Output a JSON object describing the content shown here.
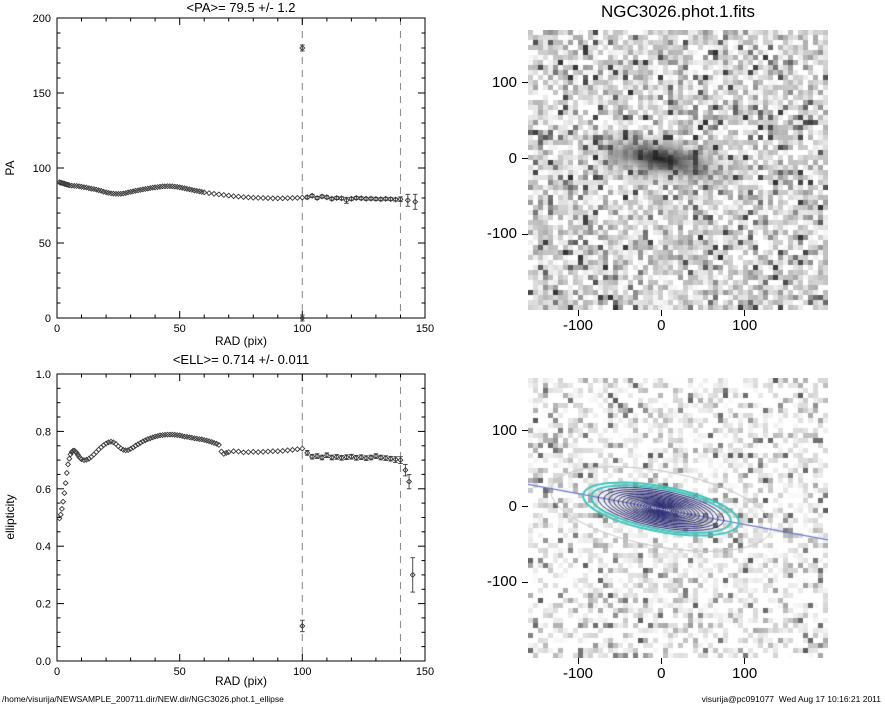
{
  "footer": {
    "left_path": "/home/visurija/NEWSAMPLE_200711.dir/NEW.dir/NGC3026.phot.1_ellipse",
    "right_stamp": "visurija@pc091077  Wed Aug 17 10:16:21 2011"
  },
  "chart_data": [
    {
      "type": "scatter",
      "title": "<PA>= 79.5 +/-  1.2",
      "xlabel": "RAD (pix)",
      "ylabel": "PA",
      "mean_pa": 79.5,
      "mean_pa_err": 1.2,
      "xlim": [
        0,
        150
      ],
      "ylim": [
        0,
        200
      ],
      "xticks": [
        "0",
        "50",
        "100",
        "150"
      ],
      "yticks": [
        "0",
        "50",
        "100",
        "150",
        "200"
      ],
      "dashed_vlines": [
        100,
        140
      ],
      "marker_color": "#3a3a3a",
      "dashed_line_color": "#8f8f8f",
      "points": [
        [
          1,
          90.5
        ],
        [
          1.5,
          90.2
        ],
        [
          2,
          90
        ],
        [
          2.5,
          89.7
        ],
        [
          3,
          89.5
        ],
        [
          3.5,
          89.2
        ],
        [
          4,
          89
        ],
        [
          4.5,
          88.8
        ],
        [
          5,
          88.5
        ],
        [
          6,
          88.3
        ],
        [
          7,
          88.1
        ],
        [
          8,
          88
        ],
        [
          9,
          87.8
        ],
        [
          10,
          87.5
        ],
        [
          11,
          87.2
        ],
        [
          12,
          87
        ],
        [
          13,
          86.6
        ],
        [
          14,
          86.2
        ],
        [
          15,
          86
        ],
        [
          16,
          85.6
        ],
        [
          17,
          85.2
        ],
        [
          18,
          84.7
        ],
        [
          19,
          84.2
        ],
        [
          20,
          83.8
        ],
        [
          21,
          83.4
        ],
        [
          22,
          83.1
        ],
        [
          23,
          82.9
        ],
        [
          24,
          82.7
        ],
        [
          25,
          82.7
        ],
        [
          26,
          82.8
        ],
        [
          27,
          83
        ],
        [
          28,
          83.3
        ],
        [
          29,
          83.7
        ],
        [
          30,
          84.1
        ],
        [
          31,
          84.4
        ],
        [
          32,
          84.8
        ],
        [
          33,
          85.1
        ],
        [
          34,
          85.4
        ],
        [
          35,
          85.7
        ],
        [
          36,
          86
        ],
        [
          37,
          86.3
        ],
        [
          38,
          86.6
        ],
        [
          39,
          86.9
        ],
        [
          40,
          87.1
        ],
        [
          41,
          87.3
        ],
        [
          42,
          87.5
        ],
        [
          43,
          87.7
        ],
        [
          44,
          87.8
        ],
        [
          45,
          87.9
        ],
        [
          46,
          87.9
        ],
        [
          47,
          87.8
        ],
        [
          48,
          87.6
        ],
        [
          49,
          87.4
        ],
        [
          50,
          87.1
        ],
        [
          51,
          86.8
        ],
        [
          52,
          86.5
        ],
        [
          53,
          86.1
        ],
        [
          54,
          85.8
        ],
        [
          55,
          85.4
        ],
        [
          56,
          85
        ],
        [
          57,
          84.7
        ],
        [
          58,
          84.4
        ],
        [
          59,
          84.1
        ],
        [
          60,
          83.8
        ],
        [
          62,
          83.3
        ],
        [
          64,
          82.8
        ],
        [
          66,
          82.4
        ],
        [
          68,
          82
        ],
        [
          70,
          81.6
        ],
        [
          72,
          81.2
        ],
        [
          74,
          80.9
        ],
        [
          76,
          80.6
        ],
        [
          78,
          80.4
        ],
        [
          80,
          80.2
        ],
        [
          82,
          80.1
        ],
        [
          84,
          80
        ],
        [
          86,
          79.9
        ],
        [
          88,
          79.8
        ],
        [
          90,
          79.8
        ],
        [
          92,
          79.8
        ],
        [
          94,
          79.9
        ],
        [
          96,
          80
        ],
        [
          98,
          80.1
        ],
        [
          100,
          80.3
        ],
        [
          100,
          180,
          2
        ],
        [
          100,
          0,
          2
        ],
        [
          102,
          80.5,
          1
        ],
        [
          104,
          81.5,
          1
        ],
        [
          106,
          80,
          1
        ],
        [
          108,
          81,
          1
        ],
        [
          110,
          80.5,
          1
        ],
        [
          112,
          79.5,
          1
        ],
        [
          114,
          80,
          1
        ],
        [
          116,
          79.8,
          1
        ],
        [
          118,
          78.5,
          2
        ],
        [
          120,
          79.5,
          1
        ],
        [
          122,
          80,
          1
        ],
        [
          124,
          79.8,
          1
        ],
        [
          126,
          79.5,
          1
        ],
        [
          128,
          79.6,
          1
        ],
        [
          130,
          79.4,
          1
        ],
        [
          132,
          79.2,
          1
        ],
        [
          134,
          79.5,
          1
        ],
        [
          136,
          79.3,
          1
        ],
        [
          138,
          79,
          1
        ],
        [
          140,
          79.2,
          1.5
        ],
        [
          143,
          78.5,
          4
        ],
        [
          146,
          77.5,
          5
        ]
      ]
    },
    {
      "type": "scatter",
      "title": "<ELL>= 0.714 +/-  0.011",
      "xlabel": "RAD (pix)",
      "ylabel": "ellipticity",
      "mean_ell": 0.714,
      "mean_ell_err": 0.011,
      "xlim": [
        0,
        150
      ],
      "ylim": [
        0,
        1.0
      ],
      "xticks": [
        "0",
        "50",
        "100",
        "150"
      ],
      "yticks": [
        "0.0",
        "0.2",
        "0.4",
        "0.6",
        "0.8",
        "1.0"
      ],
      "dashed_vlines": [
        100,
        140
      ],
      "marker_color": "#3a3a3a",
      "dashed_line_color": "#8f8f8f",
      "points": [
        [
          1,
          0.497
        ],
        [
          1.5,
          0.51
        ],
        [
          2,
          0.53
        ],
        [
          2.5,
          0.555
        ],
        [
          3,
          0.585
        ],
        [
          3.5,
          0.62
        ],
        [
          4,
          0.655
        ],
        [
          4.5,
          0.685
        ],
        [
          5,
          0.705
        ],
        [
          5.5,
          0.72
        ],
        [
          6,
          0.728
        ],
        [
          6.5,
          0.732
        ],
        [
          7,
          0.733
        ],
        [
          7.5,
          0.73
        ],
        [
          8,
          0.725
        ],
        [
          8.5,
          0.718
        ],
        [
          9,
          0.712
        ],
        [
          9.5,
          0.707
        ],
        [
          10,
          0.703
        ],
        [
          11,
          0.7
        ],
        [
          12,
          0.701
        ],
        [
          13,
          0.705
        ],
        [
          14,
          0.711
        ],
        [
          15,
          0.719
        ],
        [
          16,
          0.728
        ],
        [
          17,
          0.737
        ],
        [
          18,
          0.745
        ],
        [
          19,
          0.752
        ],
        [
          20,
          0.758
        ],
        [
          21,
          0.762
        ],
        [
          22,
          0.764
        ],
        [
          23,
          0.762
        ],
        [
          24,
          0.756
        ],
        [
          25,
          0.748
        ],
        [
          26,
          0.741
        ],
        [
          27,
          0.736
        ],
        [
          28,
          0.734
        ],
        [
          29,
          0.735
        ],
        [
          30,
          0.739
        ],
        [
          31,
          0.744
        ],
        [
          32,
          0.75
        ],
        [
          33,
          0.755
        ],
        [
          34,
          0.76
        ],
        [
          35,
          0.765
        ],
        [
          36,
          0.769
        ],
        [
          37,
          0.773
        ],
        [
          38,
          0.776
        ],
        [
          39,
          0.779
        ],
        [
          40,
          0.782
        ],
        [
          41,
          0.784
        ],
        [
          42,
          0.786
        ],
        [
          43,
          0.787
        ],
        [
          44,
          0.788
        ],
        [
          45,
          0.789
        ],
        [
          46,
          0.789
        ],
        [
          47,
          0.789
        ],
        [
          48,
          0.788
        ],
        [
          49,
          0.787
        ],
        [
          50,
          0.786
        ],
        [
          51,
          0.784
        ],
        [
          52,
          0.782
        ],
        [
          53,
          0.781
        ],
        [
          54,
          0.779
        ],
        [
          55,
          0.778
        ],
        [
          56,
          0.776
        ],
        [
          57,
          0.775
        ],
        [
          58,
          0.773
        ],
        [
          59,
          0.772
        ],
        [
          60,
          0.77
        ],
        [
          61,
          0.768
        ],
        [
          62,
          0.766
        ],
        [
          63,
          0.763
        ],
        [
          64,
          0.76
        ],
        [
          65,
          0.757
        ],
        [
          66,
          0.753
        ],
        [
          67,
          0.73
        ],
        [
          68,
          0.722
        ],
        [
          69,
          0.725
        ],
        [
          70,
          0.728
        ],
        [
          72,
          0.731
        ],
        [
          74,
          0.73
        ],
        [
          76,
          0.727
        ],
        [
          78,
          0.728
        ],
        [
          80,
          0.729
        ],
        [
          82,
          0.728
        ],
        [
          84,
          0.729
        ],
        [
          86,
          0.73
        ],
        [
          88,
          0.731
        ],
        [
          90,
          0.731
        ],
        [
          92,
          0.732
        ],
        [
          94,
          0.734
        ],
        [
          96,
          0.736
        ],
        [
          98,
          0.738
        ],
        [
          100,
          0.74
        ],
        [
          100,
          0.122,
          0.02
        ],
        [
          102,
          0.725,
          0.008
        ],
        [
          104,
          0.712,
          0.008
        ],
        [
          106,
          0.714,
          0.008
        ],
        [
          108,
          0.709,
          0.008
        ],
        [
          110,
          0.717,
          0.008
        ],
        [
          112,
          0.709,
          0.008
        ],
        [
          114,
          0.711,
          0.008
        ],
        [
          116,
          0.708,
          0.008
        ],
        [
          118,
          0.71,
          0.008
        ],
        [
          120,
          0.712,
          0.008
        ],
        [
          122,
          0.708,
          0.008
        ],
        [
          124,
          0.71,
          0.008
        ],
        [
          126,
          0.707,
          0.008
        ],
        [
          128,
          0.709,
          0.008
        ],
        [
          130,
          0.714,
          0.008
        ],
        [
          132,
          0.709,
          0.008
        ],
        [
          134,
          0.707,
          0.008
        ],
        [
          136,
          0.705,
          0.008
        ],
        [
          138,
          0.702,
          0.01
        ],
        [
          140,
          0.7,
          0.012
        ],
        [
          142,
          0.665,
          0.02
        ],
        [
          143.5,
          0.625,
          0.025
        ],
        [
          145,
          0.3,
          0.06
        ]
      ]
    }
  ],
  "images": [
    {
      "title": "NGC3026.phot.1.fits",
      "xticks": [
        "-100",
        "0",
        "100"
      ],
      "yticks": [
        "100",
        "0",
        "-100"
      ],
      "xlim": [
        -160,
        200
      ],
      "ylim": [
        -200,
        170
      ]
    },
    {
      "title": "",
      "xticks": [
        "-100",
        "0",
        "100"
      ],
      "yticks": [
        "100",
        "0",
        "-100"
      ],
      "xlim": [
        -160,
        200
      ],
      "ylim": [
        -200,
        170
      ],
      "overlay": {
        "pa_deg": 79.5,
        "ellipticity": 0.714,
        "contour_color": "#2b2b78",
        "outer_ellipse_color": "#40c4bc",
        "faint_ellipse_color": "#c6c6c6",
        "line_color": "#6a76cc"
      }
    }
  ]
}
